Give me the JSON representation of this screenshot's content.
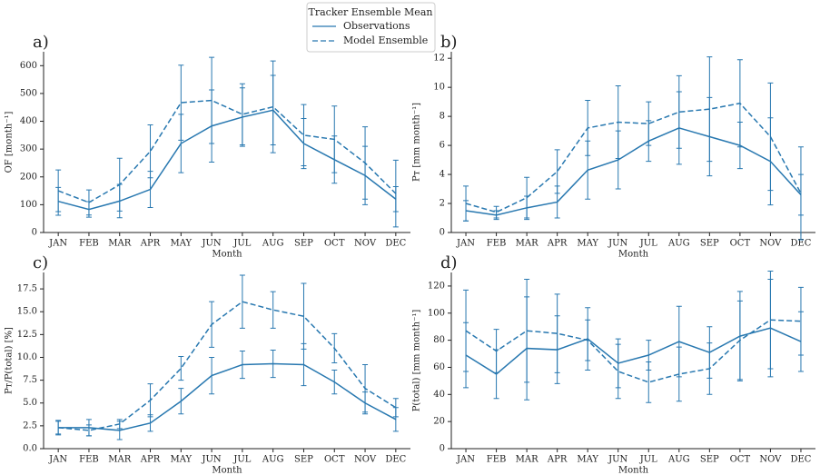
{
  "chart_data": [
    {
      "type": "line",
      "label": "a)",
      "legend_title": "Tracker Ensemble Mean",
      "xlabel": "Month",
      "ylabel": "OF [month⁻¹]",
      "categories": [
        "JAN",
        "FEB",
        "MAR",
        "APR",
        "MAY",
        "JUN",
        "JUL",
        "AUG",
        "SEP",
        "OCT",
        "NOV",
        "DEC"
      ],
      "ylim": [
        0,
        650
      ],
      "yticks": [
        0,
        100,
        200,
        300,
        400,
        500,
        600
      ],
      "series": [
        {
          "name": "Observations",
          "color": "#2878b0",
          "linestyle": "solid",
          "values": [
            112,
            83,
            113,
            155,
            320,
            383,
            415,
            440,
            320,
            262,
            205,
            120
          ],
          "errors": [
            50,
            28,
            60,
            65,
            105,
            130,
            105,
            125,
            90,
            85,
            105,
            45
          ]
        },
        {
          "name": "Model Ensemble",
          "color": "#2878b0",
          "linestyle": "dashed",
          "values": [
            150,
            108,
            172,
            292,
            467,
            475,
            425,
            452,
            350,
            335,
            250,
            140
          ],
          "errors": [
            75,
            45,
            95,
            95,
            135,
            155,
            110,
            165,
            110,
            120,
            130,
            120
          ]
        }
      ]
    },
    {
      "type": "line",
      "label": "b)",
      "xlabel": "Month",
      "ylabel": "Pᴛ [mm month⁻¹]",
      "categories": [
        "JAN",
        "FEB",
        "MAR",
        "APR",
        "MAY",
        "JUN",
        "JUL",
        "AUG",
        "SEP",
        "OCT",
        "NOV",
        "DEC"
      ],
      "ylim": [
        0,
        12.45
      ],
      "yticks": [
        0,
        2,
        4,
        6,
        8,
        10,
        12
      ],
      "series": [
        {
          "name": "Observations",
          "color": "#2878b0",
          "linestyle": "solid",
          "values": [
            1.5,
            1.2,
            1.7,
            2.1,
            4.3,
            5.0,
            6.3,
            7.2,
            6.6,
            6.0,
            4.9,
            2.6
          ],
          "errors": [
            0.7,
            0.3,
            0.8,
            1.1,
            2.0,
            2.0,
            1.4,
            2.5,
            2.7,
            1.6,
            3.0,
            1.4
          ]
        },
        {
          "name": "Model Ensemble",
          "color": "#2878b0",
          "linestyle": "dashed",
          "values": [
            2.0,
            1.4,
            2.4,
            4.2,
            7.2,
            7.6,
            7.5,
            8.3,
            8.5,
            8.9,
            6.6,
            2.7
          ],
          "errors": [
            1.2,
            0.4,
            1.4,
            1.5,
            1.9,
            2.5,
            1.5,
            2.5,
            3.6,
            3.0,
            3.7,
            3.2
          ]
        }
      ]
    },
    {
      "type": "line",
      "label": "c)",
      "xlabel": "Month",
      "ylabel": "Pᴛ/P(total) [%]",
      "categories": [
        "JAN",
        "FEB",
        "MAR",
        "APR",
        "MAY",
        "JUN",
        "JUL",
        "AUG",
        "SEP",
        "OCT",
        "NOV",
        "DEC"
      ],
      "ylim": [
        0,
        19.3
      ],
      "yticks": [
        {
          "value": 0,
          "label": "0.0"
        },
        2.5,
        {
          "value": 5,
          "label": "5.0"
        },
        7.5,
        {
          "value": 10,
          "label": "10.0"
        },
        12.5,
        {
          "value": 15,
          "label": "15.0"
        },
        17.5
      ],
      "series": [
        {
          "name": "Observations",
          "color": "#2878b0",
          "linestyle": "solid",
          "values": [
            2.3,
            2.3,
            2.0,
            2.8,
            5.2,
            8.0,
            9.2,
            9.3,
            9.2,
            7.3,
            5.0,
            3.2
          ],
          "errors": [
            0.7,
            0.9,
            1.0,
            0.9,
            1.4,
            2.0,
            1.5,
            1.5,
            2.3,
            1.3,
            1.2,
            1.3
          ]
        },
        {
          "name": "Model Ensemble",
          "color": "#2878b0",
          "linestyle": "dashed",
          "values": [
            2.3,
            2.0,
            2.7,
            5.3,
            8.8,
            13.6,
            16.1,
            15.2,
            14.5,
            11.0,
            6.6,
            4.5
          ],
          "errors": [
            0.8,
            0.6,
            0.5,
            1.8,
            1.3,
            2.5,
            2.9,
            2.0,
            3.6,
            1.6,
            2.6,
            1.0
          ]
        }
      ]
    },
    {
      "type": "line",
      "label": "d)",
      "xlabel": "Month",
      "ylabel": "P(total) [mm month⁻¹]",
      "categories": [
        "JAN",
        "FEB",
        "MAR",
        "APR",
        "MAY",
        "JUN",
        "JUL",
        "AUG",
        "SEP",
        "OCT",
        "NOV",
        "DEC"
      ],
      "ylim": [
        0,
        130
      ],
      "yticks": [
        0,
        20,
        40,
        60,
        80,
        100,
        120
      ],
      "series": [
        {
          "name": "Observations",
          "color": "#2878b0",
          "linestyle": "solid",
          "values": [
            69,
            55,
            74,
            73,
            81,
            63,
            69,
            79,
            71,
            83,
            89,
            79
          ],
          "errors": [
            24,
            18,
            38,
            25,
            23,
            18,
            11,
            26,
            19,
            33,
            36,
            22
          ]
        },
        {
          "name": "Model Ensemble",
          "color": "#2878b0",
          "linestyle": "dashed",
          "values": [
            87,
            72,
            87,
            85,
            80,
            57,
            49,
            55,
            59,
            80,
            95,
            94
          ],
          "errors": [
            30,
            16,
            38,
            29,
            15,
            20,
            15,
            20,
            19,
            29,
            36,
            25
          ]
        }
      ]
    }
  ]
}
